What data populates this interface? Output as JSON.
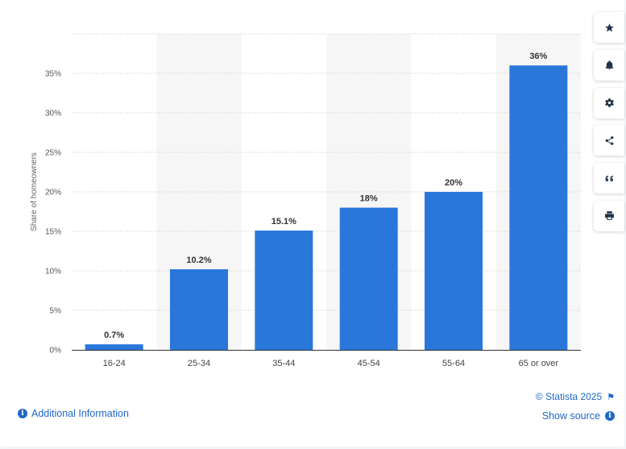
{
  "chart_data": {
    "type": "bar",
    "categories": [
      "16-24",
      "25-34",
      "35-44",
      "45-54",
      "55-64",
      "65 or over"
    ],
    "values": [
      0.7,
      10.2,
      15.1,
      18,
      20,
      36
    ],
    "value_labels": [
      "0.7%",
      "10.2%",
      "15.1%",
      "18%",
      "20%",
      "36%"
    ],
    "ylabel": "Share of homeowners",
    "ylim": [
      0,
      35
    ],
    "yticks": [
      "0%",
      "5%",
      "10%",
      "15%",
      "20%",
      "25%",
      "30%",
      "35%"
    ],
    "grid": true,
    "bar_color": "#2a77db",
    "alt_band_color": "#f6f6f6"
  },
  "toolbar": {
    "buttons": [
      {
        "name": "favorite-button",
        "icon": "star-icon"
      },
      {
        "name": "notification-button",
        "icon": "bell-icon"
      },
      {
        "name": "settings-button",
        "icon": "gear-icon"
      },
      {
        "name": "share-button",
        "icon": "share-icon"
      },
      {
        "name": "cite-button",
        "icon": "quote-icon"
      },
      {
        "name": "print-button",
        "icon": "printer-icon"
      }
    ]
  },
  "footer": {
    "additional_info": "Additional Information",
    "copyright": "© Statista 2025",
    "show_source": "Show source"
  }
}
